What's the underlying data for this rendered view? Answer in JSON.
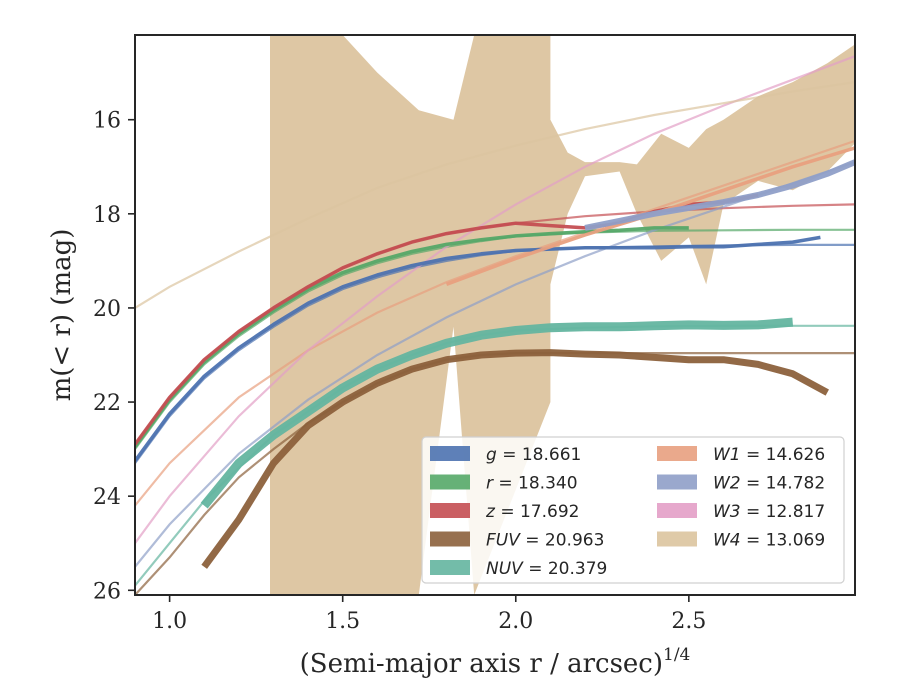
{
  "chart_data": {
    "type": "line",
    "xlabel": "(Semi-major axis r / arcsec)",
    "xlabel_sup": "1/4",
    "ylabel": "m(< r) (mag)",
    "xlim": [
      0.9,
      2.98
    ],
    "ylim": [
      26.1,
      14.2
    ],
    "y_inverted": true,
    "xticks": [
      1.0,
      1.5,
      2.0,
      2.5
    ],
    "xtick_labels": [
      "1.0",
      "1.5",
      "2.0",
      "2.5"
    ],
    "yticks": [
      16,
      18,
      20,
      22,
      24,
      26
    ],
    "ytick_labels": [
      "16",
      "18",
      "20",
      "22",
      "24",
      "26"
    ],
    "grid": false,
    "legend_position": "lower-right",
    "series": [
      {
        "band": "g",
        "value": "18.661",
        "color": "#4c72b0",
        "model_x": [
          0.9,
          1.0,
          1.1,
          1.2,
          1.3,
          1.4,
          1.5,
          1.6,
          1.7,
          1.8,
          1.9,
          2.0,
          2.2,
          2.4,
          2.6,
          2.8,
          2.98
        ],
        "model_y": [
          23.3,
          22.3,
          21.5,
          20.9,
          20.4,
          19.95,
          19.6,
          19.35,
          19.15,
          19.0,
          18.88,
          18.79,
          18.72,
          18.69,
          18.67,
          18.66,
          18.66
        ],
        "data_upper": [
          0.9,
          1.0,
          1.1,
          1.2,
          1.3,
          1.4,
          1.5,
          1.6,
          1.7,
          1.8,
          1.9,
          2.0,
          2.1,
          2.2,
          2.3,
          2.4,
          2.5,
          2.6,
          2.7,
          2.8,
          2.88
        ],
        "data_y": [
          23.25,
          22.25,
          21.45,
          20.85,
          20.35,
          19.9,
          19.55,
          19.3,
          19.1,
          18.95,
          18.85,
          18.78,
          18.75,
          18.72,
          18.72,
          18.72,
          18.7,
          18.7,
          18.65,
          18.6,
          18.5
        ]
      },
      {
        "band": "r",
        "value": "18.340",
        "color": "#55a868",
        "model_x": [
          0.9,
          1.0,
          1.1,
          1.2,
          1.3,
          1.4,
          1.5,
          1.6,
          1.7,
          1.8,
          1.9,
          2.0,
          2.2,
          2.4,
          2.6,
          2.8,
          2.98
        ],
        "model_y": [
          23.0,
          22.0,
          21.2,
          20.6,
          20.1,
          19.65,
          19.3,
          19.05,
          18.85,
          18.7,
          18.58,
          18.48,
          18.4,
          18.36,
          18.35,
          18.34,
          18.34
        ],
        "data_x": [
          0.9,
          1.0,
          1.1,
          1.2,
          1.3,
          1.4,
          1.5,
          1.6,
          1.7,
          1.8,
          1.9,
          2.0,
          2.1,
          2.2,
          2.3,
          2.4,
          2.5
        ],
        "data_y": [
          22.95,
          21.95,
          21.15,
          20.55,
          20.05,
          19.6,
          19.25,
          19.0,
          18.8,
          18.65,
          18.55,
          18.47,
          18.42,
          18.38,
          18.35,
          18.3,
          18.3
        ]
      },
      {
        "band": "z",
        "value": "17.692",
        "color": "#c44e52",
        "model_x": [
          0.9,
          1.0,
          1.1,
          1.2,
          1.3,
          1.4,
          1.5,
          1.6,
          1.7,
          1.8,
          1.9,
          2.0,
          2.2,
          2.4,
          2.6,
          2.8,
          2.98
        ],
        "model_y": [
          22.9,
          21.9,
          21.1,
          20.5,
          20.0,
          19.55,
          19.15,
          18.85,
          18.6,
          18.42,
          18.3,
          18.2,
          18.05,
          17.95,
          17.88,
          17.83,
          17.8
        ],
        "data_x": [
          0.9,
          1.0,
          1.1,
          1.2,
          1.3,
          1.4,
          1.5,
          1.6,
          1.7,
          1.8,
          1.9,
          2.0,
          2.1,
          2.2,
          2.3,
          2.4,
          2.5,
          2.6,
          2.7
        ],
        "data_y": [
          22.9,
          21.9,
          21.1,
          20.5,
          20.0,
          19.55,
          19.15,
          18.85,
          18.6,
          18.42,
          18.3,
          18.2,
          18.25,
          18.3,
          18.2,
          17.95,
          17.8,
          17.75,
          17.6
        ]
      },
      {
        "band": "FUV",
        "value": "20.963",
        "color": "#8c613c",
        "model_x": [
          0.9,
          1.0,
          1.1,
          1.2,
          1.3,
          1.4,
          1.5,
          1.6,
          1.7,
          1.8,
          1.9,
          2.0,
          2.2,
          2.4,
          2.6,
          2.8,
          2.98
        ],
        "model_y": [
          26.1,
          25.3,
          24.4,
          23.6,
          23.0,
          22.45,
          22.0,
          21.6,
          21.3,
          21.1,
          21.0,
          20.96,
          20.96,
          20.96,
          20.96,
          20.96,
          20.96
        ],
        "data_x": [
          1.1,
          1.2,
          1.3,
          1.4,
          1.5,
          1.6,
          1.7,
          1.8,
          1.9,
          2.0,
          2.1,
          2.2,
          2.3,
          2.4,
          2.5,
          2.6,
          2.7,
          2.8,
          2.9
        ],
        "data_y": [
          25.5,
          24.5,
          23.3,
          22.5,
          22.0,
          21.6,
          21.3,
          21.1,
          21.0,
          20.96,
          20.95,
          20.98,
          21.0,
          21.05,
          21.1,
          21.1,
          21.2,
          21.4,
          21.8
        ]
      },
      {
        "band": "NUV",
        "value": "20.379",
        "color": "#64b5a0",
        "model_x": [
          0.9,
          1.0,
          1.1,
          1.2,
          1.3,
          1.4,
          1.5,
          1.6,
          1.7,
          1.8,
          1.9,
          2.0,
          2.2,
          2.4,
          2.6,
          2.8,
          2.98
        ],
        "model_y": [
          25.9,
          25.0,
          24.1,
          23.4,
          22.7,
          22.2,
          21.7,
          21.3,
          21.0,
          20.75,
          20.58,
          20.48,
          20.42,
          20.39,
          20.38,
          20.38,
          20.38
        ],
        "data_x": [
          1.1,
          1.2,
          1.3,
          1.4,
          1.5,
          1.6,
          1.7,
          1.8,
          1.9,
          2.0,
          2.1,
          2.2,
          2.3,
          2.4,
          2.5,
          2.6,
          2.7,
          2.8
        ],
        "data_y": [
          24.2,
          23.3,
          22.7,
          22.2,
          21.7,
          21.3,
          21.0,
          20.75,
          20.58,
          20.48,
          20.42,
          20.4,
          20.4,
          20.38,
          20.36,
          20.37,
          20.36,
          20.3
        ]
      },
      {
        "band": "W1",
        "value": "14.626",
        "color": "#e8a07f",
        "model_x": [
          0.9,
          1.0,
          1.2,
          1.4,
          1.6,
          1.8,
          2.0,
          2.2,
          2.4,
          2.6,
          2.8,
          2.98
        ],
        "model_y": [
          24.2,
          23.3,
          21.9,
          20.9,
          20.1,
          19.45,
          18.9,
          18.4,
          17.9,
          17.4,
          16.9,
          16.45
        ],
        "data_x": [
          1.8,
          2.0,
          2.2,
          2.4,
          2.6,
          2.8,
          2.98
        ],
        "data_y": [
          19.5,
          18.95,
          18.45,
          18.0,
          17.5,
          17.0,
          16.6
        ]
      },
      {
        "band": "W2",
        "value": "14.782",
        "color": "#8f9fc8",
        "model_x": [
          0.9,
          1.0,
          1.2,
          1.4,
          1.6,
          1.8,
          2.0,
          2.2,
          2.4,
          2.6,
          2.8,
          2.98
        ],
        "model_y": [
          25.5,
          24.6,
          23.1,
          21.95,
          21.0,
          20.2,
          19.5,
          18.9,
          18.35,
          17.85,
          17.35,
          16.9
        ],
        "data_x": [
          2.2,
          2.4,
          2.6,
          2.7,
          2.8,
          2.9,
          2.98
        ],
        "data_y": [
          18.3,
          18.0,
          17.75,
          17.6,
          17.4,
          17.15,
          16.9
        ]
      },
      {
        "band": "W3",
        "value": "12.817",
        "color": "#e39fc6",
        "model_x": [
          0.9,
          1.0,
          1.2,
          1.4,
          1.6,
          1.8,
          2.0,
          2.2,
          2.4,
          2.6,
          2.8,
          2.98
        ],
        "model_y": [
          25.0,
          24.0,
          22.3,
          20.9,
          19.75,
          18.7,
          17.8,
          17.0,
          16.3,
          15.7,
          15.15,
          14.65
        ],
        "data_x": [],
        "data_y": []
      },
      {
        "band": "W4",
        "value": "13.069",
        "color": "#dcc49f",
        "model_x": [
          0.9,
          1.0,
          1.2,
          1.4,
          1.6,
          1.8,
          2.0,
          2.2,
          2.4,
          2.6,
          2.8,
          2.98
        ],
        "model_y": [
          20.0,
          19.55,
          18.8,
          18.1,
          17.45,
          16.95,
          16.55,
          16.2,
          15.9,
          15.65,
          15.4,
          15.2
        ],
        "band_x": [
          1.29,
          1.29,
          1.5,
          1.6,
          1.72,
          1.82,
          1.88,
          2.1,
          2.1,
          2.15,
          2.2,
          2.3,
          2.35,
          2.42,
          2.5,
          2.55,
          2.6,
          2.7,
          2.8,
          2.9,
          2.98
        ],
        "band_upper": [
          14.2,
          14.2,
          14.2,
          15.0,
          15.8,
          16.0,
          14.2,
          14.2,
          16.0,
          16.7,
          16.9,
          16.9,
          16.95,
          16.3,
          16.6,
          16.2,
          16.0,
          15.5,
          15.2,
          14.8,
          14.4
        ],
        "band_lower": [
          26.1,
          26.1,
          26.1,
          26.1,
          26.1,
          20.4,
          26.1,
          22.0,
          19.5,
          18.0,
          17.2,
          17.1,
          18.0,
          19.0,
          18.5,
          19.5,
          17.8,
          17.3,
          17.5,
          17.1,
          16.5
        ]
      }
    ]
  }
}
